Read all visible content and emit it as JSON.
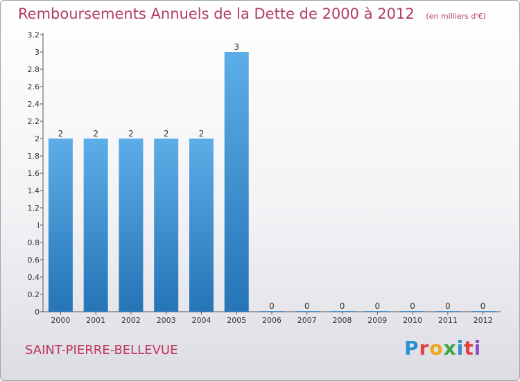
{
  "header": {
    "title": "Remboursements Annuels de la Dette de 2000 à 2012",
    "unit": "(en milliers d'€)"
  },
  "footer": {
    "commune": "SAINT-PIERRE-BELLEVUE",
    "logo_text": "Proxiti",
    "logo_letters": [
      "P",
      "r",
      "o",
      "x",
      "i",
      "t",
      "i"
    ],
    "logo_colors": [
      "#2f8fd0",
      "#e3403a",
      "#f2a51c",
      "#3aa640",
      "#2f8fd0",
      "#e3403a",
      "#8a4cc2"
    ]
  },
  "colors": {
    "bar_top": "#5dade8",
    "bar_bottom": "#2575b7",
    "title": "#b23b6a"
  },
  "chart_data": {
    "type": "bar",
    "categories": [
      "2000",
      "2001",
      "2002",
      "2003",
      "2004",
      "2005",
      "2006",
      "2007",
      "2008",
      "2009",
      "2010",
      "2011",
      "2012"
    ],
    "values": [
      2,
      2,
      2,
      2,
      2,
      3,
      0,
      0,
      0,
      0,
      0,
      0,
      0
    ],
    "ylim": [
      0,
      3.2
    ],
    "yticks": [
      0,
      0.2,
      0.4,
      0.6,
      0.8,
      1,
      1.2,
      1.4,
      1.6,
      1.8,
      2,
      2.2,
      2.4,
      2.6,
      2.8,
      3,
      3.2
    ],
    "ytick_labels": [
      "0",
      "0.2",
      "0.4",
      "0.6",
      "0.8",
      "I",
      "1.2",
      "1.4",
      "1.6",
      "1.8",
      "2",
      "2.2",
      "2.4",
      "2.6",
      "2.8",
      "3",
      "3.2"
    ],
    "data_labels": [
      "2",
      "2",
      "2",
      "2",
      "2",
      "3",
      "0",
      "0",
      "0",
      "0",
      "0",
      "0",
      "0"
    ],
    "grid": false,
    "xlabel": "",
    "ylabel": ""
  }
}
